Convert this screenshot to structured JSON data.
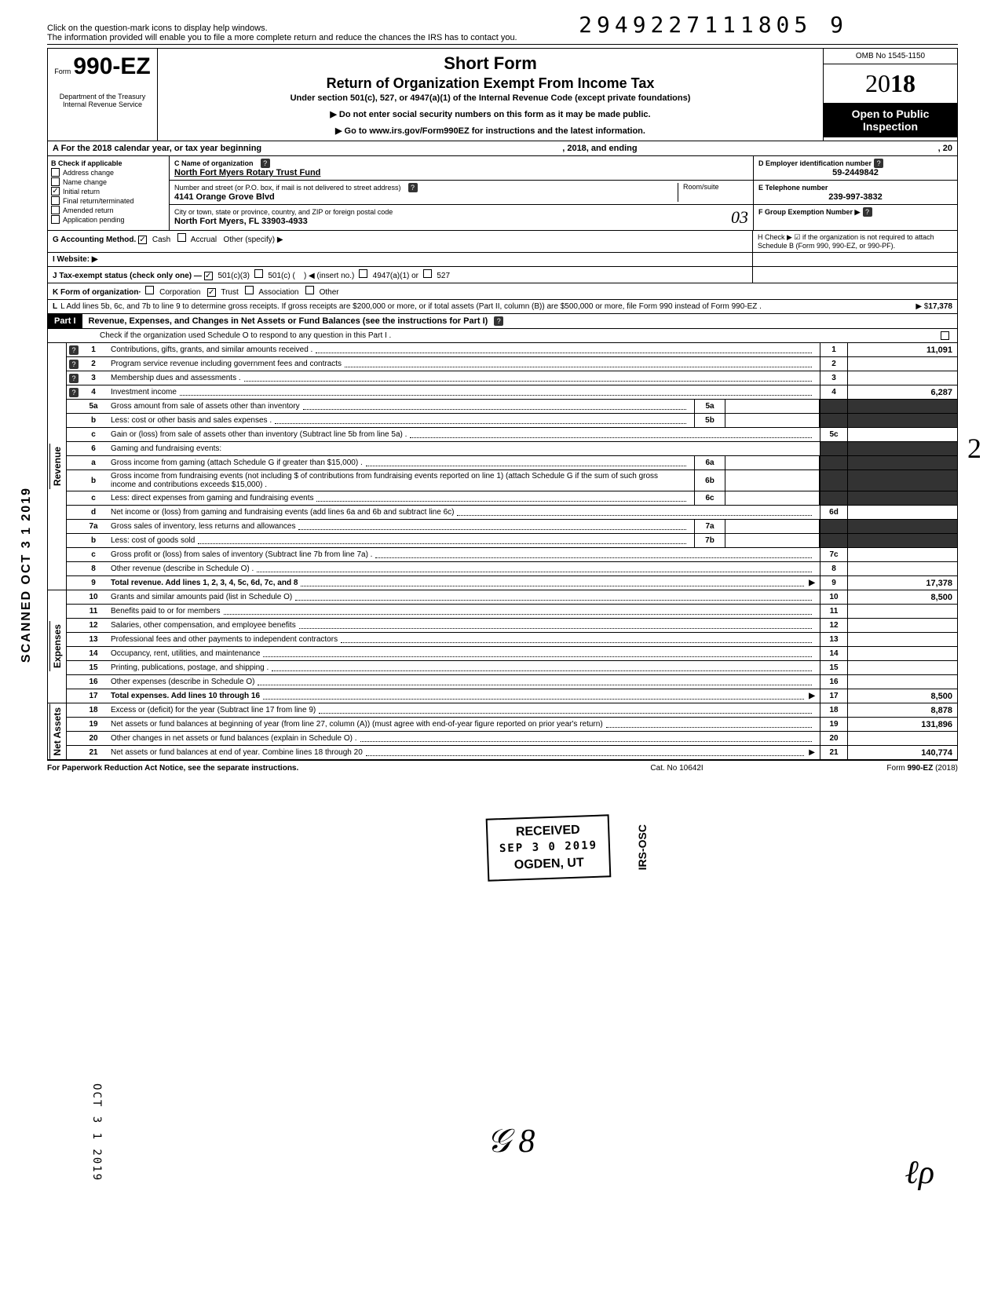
{
  "stamp_number": "2949227111805 9",
  "top_note1": "Click on the question-mark icons to display help windows.",
  "top_note2": "The information provided will enable you to file a more complete return and reduce the chances the IRS has to contact you.",
  "form": {
    "prefix": "Form",
    "number": "990-EZ",
    "dept": "Department of the Treasury\nInternal Revenue Service"
  },
  "header": {
    "title": "Short Form",
    "subtitle": "Return of Organization Exempt From Income Tax",
    "under": "Under section 501(c), 527, or 4947(a)(1) of the Internal Revenue Code (except private foundations)",
    "arrow1": "▶ Do not enter social security numbers on this form as it may be made public.",
    "arrow2": "▶ Go to www.irs.gov/Form990EZ for instructions and the latest information.",
    "omb": "OMB No 1545-1150",
    "year_prefix": "20",
    "year_bold": "18",
    "open_public": "Open to Public Inspection"
  },
  "row_a": {
    "label": "A For the 2018 calendar year, or tax year beginning",
    "mid": ", 2018, and ending",
    "end": ", 20"
  },
  "col_b": {
    "header": "B Check if applicable",
    "items": [
      {
        "label": "Address change",
        "checked": false
      },
      {
        "label": "Name change",
        "checked": false
      },
      {
        "label": "Initial return",
        "checked": true
      },
      {
        "label": "Final return/terminated",
        "checked": false
      },
      {
        "label": "Amended return",
        "checked": false
      },
      {
        "label": "Application pending",
        "checked": false
      }
    ]
  },
  "col_c": {
    "name_label": "C Name of organization",
    "name": "North Fort Myers Rotary Trust Fund",
    "street_label": "Number and street (or P.O. box, if mail is not delivered to street address)",
    "street": "4141 Orange Grove Blvd",
    "room_label": "Room/suite",
    "city_label": "City or town, state or province, country, and ZIP or foreign postal code",
    "city": "North Fort Myers, FL 33903-4933",
    "hand_03": "03"
  },
  "col_d": {
    "ein_label": "D Employer identification number",
    "ein": "59-2449842",
    "phone_label": "E Telephone number",
    "phone": "239-997-3832",
    "group_label": "F Group Exemption Number ▶"
  },
  "row_g": {
    "label": "G Accounting Method.",
    "cash": "Cash",
    "accrual": "Accrual",
    "other": "Other (specify) ▶"
  },
  "row_h": "H Check ▶ ☑ if the organization is not required to attach Schedule B (Form 990, 990-EZ, or 990-PF).",
  "row_i": "I Website: ▶",
  "row_j": {
    "label": "J Tax-exempt status (check only one) —",
    "opt1": "501(c)(3)",
    "opt2": "501(c) (",
    "opt2b": ") ◀ (insert no.)",
    "opt3": "4947(a)(1) or",
    "opt4": "527"
  },
  "row_k": {
    "label": "K Form of organization·",
    "opts": [
      "Corporation",
      "Trust",
      "Association",
      "Other"
    ]
  },
  "row_l": {
    "text": "L Add lines 5b, 6c, and 7b to line 9 to determine gross receipts. If gross receipts are $200,000 or more, or if total assets (Part II, column (B)) are $500,000 or more, file Form 990 instead of Form 990-EZ .",
    "arrow": "▶  $",
    "value": "17,378"
  },
  "part1": {
    "label": "Part I",
    "title": "Revenue, Expenses, and Changes in Net Assets or Fund Balances (see the instructions for Part I)",
    "check_o": "Check if the organization used Schedule O to respond to any question in this Part I ."
  },
  "sections": {
    "revenue": "Revenue",
    "expenses": "Expenses",
    "netassets": "Net Assets"
  },
  "lines": {
    "l1": {
      "num": "1",
      "text": "Contributions, gifts, grants, and similar amounts received .",
      "end": "1",
      "val": "11,091"
    },
    "l2": {
      "num": "2",
      "text": "Program service revenue including government fees and contracts",
      "end": "2",
      "val": ""
    },
    "l3": {
      "num": "3",
      "text": "Membership dues and assessments .",
      "end": "3",
      "val": ""
    },
    "l4": {
      "num": "4",
      "text": "Investment income",
      "end": "4",
      "val": "6,287"
    },
    "l5a": {
      "num": "5a",
      "text": "Gross amount from sale of assets other than inventory",
      "mid": "5a"
    },
    "l5b": {
      "num": "b",
      "text": "Less: cost or other basis and sales expenses .",
      "mid": "5b"
    },
    "l5c": {
      "num": "c",
      "text": "Gain or (loss) from sale of assets other than inventory (Subtract line 5b from line 5a) .",
      "end": "5c",
      "val": ""
    },
    "l6": {
      "num": "6",
      "text": "Gaming and fundraising events:"
    },
    "l6a": {
      "num": "a",
      "text": "Gross income from gaming (attach Schedule G if greater than $15,000) .",
      "mid": "6a"
    },
    "l6b": {
      "num": "b",
      "text": "Gross income from fundraising events (not including  $                    of contributions from fundraising events reported on line 1) (attach Schedule G if the sum of such gross income and contributions exceeds $15,000) .",
      "mid": "6b"
    },
    "l6c": {
      "num": "c",
      "text": "Less: direct expenses from gaming and fundraising events",
      "mid": "6c"
    },
    "l6d": {
      "num": "d",
      "text": "Net income or (loss) from gaming and fundraising events (add lines 6a and 6b and subtract line 6c)",
      "end": "6d",
      "val": ""
    },
    "l7a": {
      "num": "7a",
      "text": "Gross sales of inventory, less returns and allowances",
      "mid": "7a"
    },
    "l7b": {
      "num": "b",
      "text": "Less: cost of goods sold",
      "mid": "7b"
    },
    "l7c": {
      "num": "c",
      "text": "Gross profit or (loss) from sales of inventory (Subtract line 7b from line 7a) .",
      "end": "7c",
      "val": ""
    },
    "l8": {
      "num": "8",
      "text": "Other revenue (describe in Schedule O) .",
      "end": "8",
      "val": ""
    },
    "l9": {
      "num": "9",
      "text": "Total revenue. Add lines 1, 2, 3, 4, 5c, 6d, 7c, and 8",
      "end": "9",
      "val": "17,378",
      "bold": true
    },
    "l10": {
      "num": "10",
      "text": "Grants and similar amounts paid (list in Schedule O)",
      "end": "10",
      "val": "8,500"
    },
    "l11": {
      "num": "11",
      "text": "Benefits paid to or for members",
      "end": "11",
      "val": ""
    },
    "l12": {
      "num": "12",
      "text": "Salaries, other compensation, and employee benefits",
      "end": "12",
      "val": ""
    },
    "l13": {
      "num": "13",
      "text": "Professional fees and other payments to independent contractors",
      "end": "13",
      "val": ""
    },
    "l14": {
      "num": "14",
      "text": "Occupancy, rent, utilities, and maintenance",
      "end": "14",
      "val": ""
    },
    "l15": {
      "num": "15",
      "text": "Printing, publications, postage, and shipping .",
      "end": "15",
      "val": ""
    },
    "l16": {
      "num": "16",
      "text": "Other expenses (describe in Schedule O)",
      "end": "16",
      "val": ""
    },
    "l17": {
      "num": "17",
      "text": "Total expenses. Add lines 10 through 16",
      "end": "17",
      "val": "8,500",
      "bold": true
    },
    "l18": {
      "num": "18",
      "text": "Excess or (deficit) for the year (Subtract line 17 from line 9)",
      "end": "18",
      "val": "8,878"
    },
    "l19": {
      "num": "19",
      "text": "Net assets or fund balances at beginning of year (from line 27, column (A)) (must agree with end-of-year figure reported on prior year's return)",
      "end": "19",
      "val": "131,896"
    },
    "l20": {
      "num": "20",
      "text": "Other changes in net assets or fund balances (explain in Schedule O) .",
      "end": "20",
      "val": ""
    },
    "l21": {
      "num": "21",
      "text": "Net assets or fund balances at end of year. Combine lines 18 through 20",
      "end": "21",
      "val": "140,774"
    }
  },
  "footer": {
    "left": "For Paperwork Reduction Act Notice, see the separate instructions.",
    "mid": "Cat. No 10642I",
    "right": "Form 990-EZ (2018)"
  },
  "received": {
    "title": "RECEIVED",
    "date": "SEP 3 0 2019",
    "loc": "OGDEN, UT"
  },
  "irs_osc": "IRS-OSC",
  "bottom_stamp": "OCT 3 1 2019",
  "hand_58": "58",
  "scanned": "SCANNED OCT 3 1 2019"
}
